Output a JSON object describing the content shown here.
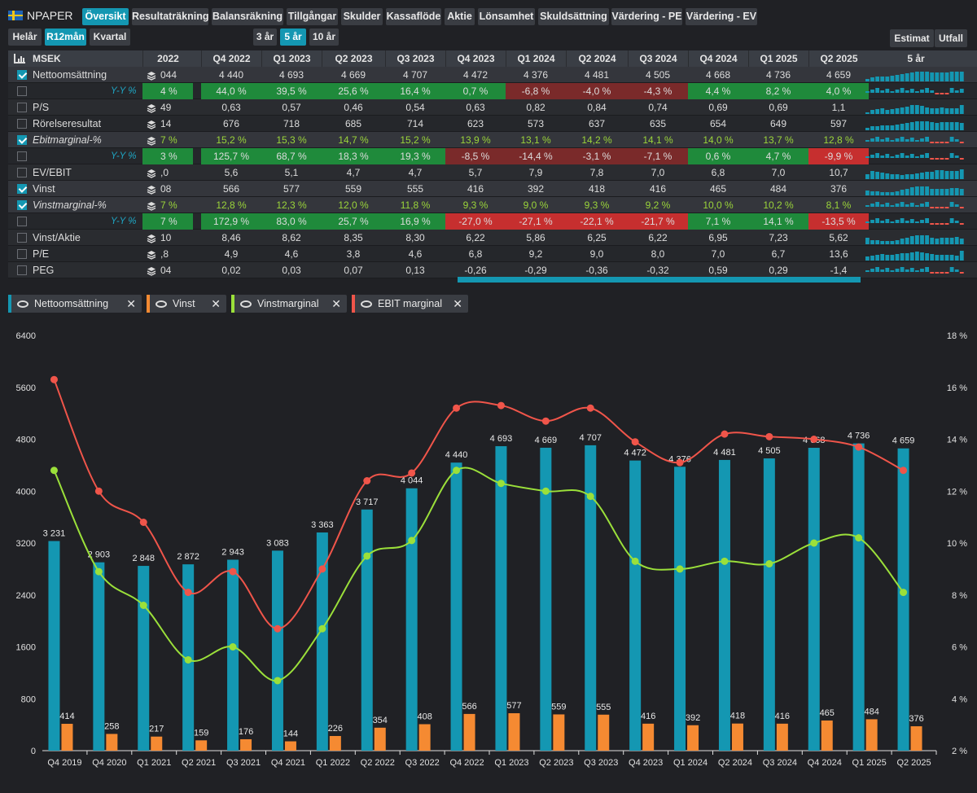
{
  "app": {
    "ticker": "NPAPER"
  },
  "tabs": [
    "Översikt",
    "Resultaträkning",
    "Balansräkning",
    "Tillgångar",
    "Skulder",
    "Kassaflöde",
    "Aktie",
    "Lönsamhet",
    "Skuldsättning",
    "Värdering - PE",
    "Värdering - EV"
  ],
  "period_buttons": [
    "Helår",
    "R12mån",
    "Kvartal"
  ],
  "range_buttons": [
    "3 år",
    "5 år",
    "10 år"
  ],
  "mode_buttons": [
    "Estimat",
    "Utfall"
  ],
  "table": {
    "unit": "MSEK",
    "columns": [
      "2022",
      "Q4 2022",
      "Q1 2023",
      "Q2 2023",
      "Q3 2023",
      "Q4 2023",
      "Q1 2024",
      "Q2 2024",
      "Q3 2024",
      "Q4 2024",
      "Q1 2025",
      "Q2 2025"
    ],
    "spark_header": "5 år",
    "rows": [
      {
        "label": "Nettoomsättning",
        "checked": true,
        "values": [
          "044",
          "4 440",
          "4 693",
          "4 669",
          "4 707",
          "4 472",
          "4 376",
          "4 481",
          "4 505",
          "4 668",
          "4 736",
          "4 659"
        ]
      },
      {
        "label": "Y-Y %",
        "yy": true,
        "values": [
          "4 %",
          "44,0 %",
          "39,5 %",
          "25,6 %",
          "16,4 %",
          "0,7 %",
          "-6,8 %",
          "-4,0 %",
          "-4,3 %",
          "4,4 %",
          "8,2 %",
          "4,0 %"
        ],
        "styles": [
          "g",
          "g",
          "g",
          "g",
          "g",
          "g",
          "r",
          "r",
          "r",
          "g",
          "g",
          "g"
        ]
      },
      {
        "label": "P/S",
        "values": [
          "49",
          "0,63",
          "0,57",
          "0,46",
          "0,54",
          "0,63",
          "0,82",
          "0,84",
          "0,74",
          "0,69",
          "0,69",
          "1,1"
        ]
      },
      {
        "label": "Rörelseresultat",
        "values": [
          "14",
          "676",
          "718",
          "685",
          "714",
          "623",
          "573",
          "637",
          "635",
          "654",
          "649",
          "597"
        ]
      },
      {
        "label": "Ebitmarginal-%",
        "checked": true,
        "italic": true,
        "green": true,
        "values": [
          "7 %",
          "15,2 %",
          "15,3 %",
          "14,7 %",
          "15,2 %",
          "13,9 %",
          "13,1 %",
          "14,2 %",
          "14,1 %",
          "14,0 %",
          "13,7 %",
          "12,8 %"
        ]
      },
      {
        "label": "Y-Y %",
        "yy": true,
        "values": [
          "3 %",
          "125,7 %",
          "68,7 %",
          "18,3 %",
          "19,3 %",
          "-8,5 %",
          "-14,4 %",
          "-3,1 %",
          "-7,1 %",
          "0,6 %",
          "4,7 %",
          "-9,9 %"
        ],
        "styles": [
          "g",
          "g",
          "g",
          "g",
          "g",
          "r",
          "r",
          "r",
          "r",
          "g",
          "g",
          "rb"
        ]
      },
      {
        "label": "EV/EBIT",
        "values": [
          ",0",
          "5,6",
          "5,1",
          "4,7",
          "4,7",
          "5,7",
          "7,9",
          "7,8",
          "7,0",
          "6,8",
          "7,0",
          "10,7"
        ]
      },
      {
        "label": "Vinst",
        "checked": true,
        "values": [
          "08",
          "566",
          "577",
          "559",
          "555",
          "416",
          "392",
          "418",
          "416",
          "465",
          "484",
          "376"
        ]
      },
      {
        "label": "Vinstmarginal-%",
        "checked": true,
        "italic": true,
        "green": true,
        "values": [
          "7 %",
          "12,8 %",
          "12,3 %",
          "12,0 %",
          "11,8 %",
          "9,3 %",
          "9,0 %",
          "9,3 %",
          "9,2 %",
          "10,0 %",
          "10,2 %",
          "8,1 %"
        ]
      },
      {
        "label": "Y-Y %",
        "yy": true,
        "values": [
          "7 %",
          "172,9 %",
          "83,0 %",
          "25,7 %",
          "16,9 %",
          "-27,0 %",
          "-27,1 %",
          "-22,1 %",
          "-21,7 %",
          "7,1 %",
          "14,1 %",
          "-13,5 %"
        ],
        "styles": [
          "g",
          "g",
          "g",
          "g",
          "g",
          "rb",
          "rb",
          "rb",
          "rb",
          "g",
          "g",
          "rb"
        ]
      },
      {
        "label": "Vinst/Aktie",
        "values": [
          "10",
          "8,46",
          "8,62",
          "8,35",
          "8,30",
          "6,22",
          "5,86",
          "6,25",
          "6,22",
          "6,95",
          "7,23",
          "5,62"
        ]
      },
      {
        "label": "P/E",
        "values": [
          ",8",
          "4,9",
          "4,6",
          "3,8",
          "4,6",
          "6,8",
          "9,2",
          "9,0",
          "8,0",
          "7,0",
          "6,7",
          "13,6"
        ]
      },
      {
        "label": "PEG",
        "values": [
          "04",
          "0,02",
          "0,03",
          "0,07",
          "0,13",
          "-0,26",
          "-0,29",
          "-0,36",
          "-0,32",
          "0,59",
          "0,29",
          "-1,4"
        ]
      }
    ]
  },
  "legend": [
    "Nettoomsättning",
    "Vinst",
    "Vinstmarginal",
    "EBIT marginal"
  ],
  "colors": {
    "revenue": "#1497b2",
    "profit": "#f58a32",
    "profit_margin": "#9be03a",
    "ebit_margin": "#f0554a",
    "positive": "#1f8a3b",
    "negative": "#c62f2f"
  },
  "chart_data": {
    "type": "bar",
    "categories": [
      "Q4 2019",
      "Q4 2020",
      "Q1 2021",
      "Q2 2021",
      "Q3 2021",
      "Q4 2021",
      "Q1 2022",
      "Q2 2022",
      "Q3 2022",
      "Q4 2022",
      "Q1 2023",
      "Q2 2023",
      "Q3 2023",
      "Q4 2023",
      "Q1 2024",
      "Q2 2024",
      "Q3 2024",
      "Q4 2024",
      "Q1 2025",
      "Q2 2025"
    ],
    "series": [
      {
        "name": "Nettoomsättning",
        "type": "bar",
        "axis": "left",
        "values": [
          3231,
          2903,
          2848,
          2872,
          2943,
          3083,
          3363,
          3717,
          4044,
          4440,
          4693,
          4669,
          4707,
          4472,
          4376,
          4481,
          4505,
          4668,
          4736,
          4659
        ],
        "labels": [
          "3 231",
          "2 903",
          "2 848",
          "2 872",
          "2 943",
          "3 083",
          "3 363",
          "3 717",
          "4 044",
          "4 440",
          "4 693",
          "4 669",
          "4 707",
          "4 472",
          "4 376",
          "4 481",
          "4 505",
          "4 668",
          "4 736",
          "4 659"
        ]
      },
      {
        "name": "Vinst",
        "type": "bar",
        "axis": "left",
        "values": [
          414,
          258,
          217,
          159,
          176,
          144,
          226,
          354,
          408,
          566,
          577,
          559,
          555,
          416,
          392,
          418,
          416,
          465,
          484,
          376
        ]
      },
      {
        "name": "Vinstmarginal",
        "type": "line",
        "axis": "right",
        "values": [
          12.8,
          8.9,
          7.6,
          5.5,
          6.0,
          4.7,
          6.7,
          9.5,
          10.1,
          12.8,
          12.3,
          12.0,
          11.8,
          9.3,
          9.0,
          9.3,
          9.2,
          10.0,
          10.2,
          8.1
        ]
      },
      {
        "name": "EBIT marginal",
        "type": "line",
        "axis": "right",
        "values": [
          16.3,
          12.0,
          10.8,
          8.1,
          8.9,
          6.7,
          9.0,
          12.4,
          12.7,
          15.2,
          15.3,
          14.7,
          15.2,
          13.9,
          13.1,
          14.2,
          14.1,
          14.0,
          13.7,
          12.8
        ]
      }
    ],
    "yleft_ticks": [
      "0",
      "800",
      "1600",
      "2400",
      "3200",
      "4000",
      "4800",
      "5600",
      "6400"
    ],
    "yright_ticks": [
      "2 %",
      "4 %",
      "6 %",
      "8 %",
      "10 %",
      "12 %",
      "14 %",
      "16 %",
      "18 %"
    ],
    "ylim_left": [
      0,
      6400
    ],
    "ylim_right": [
      2,
      18
    ]
  }
}
